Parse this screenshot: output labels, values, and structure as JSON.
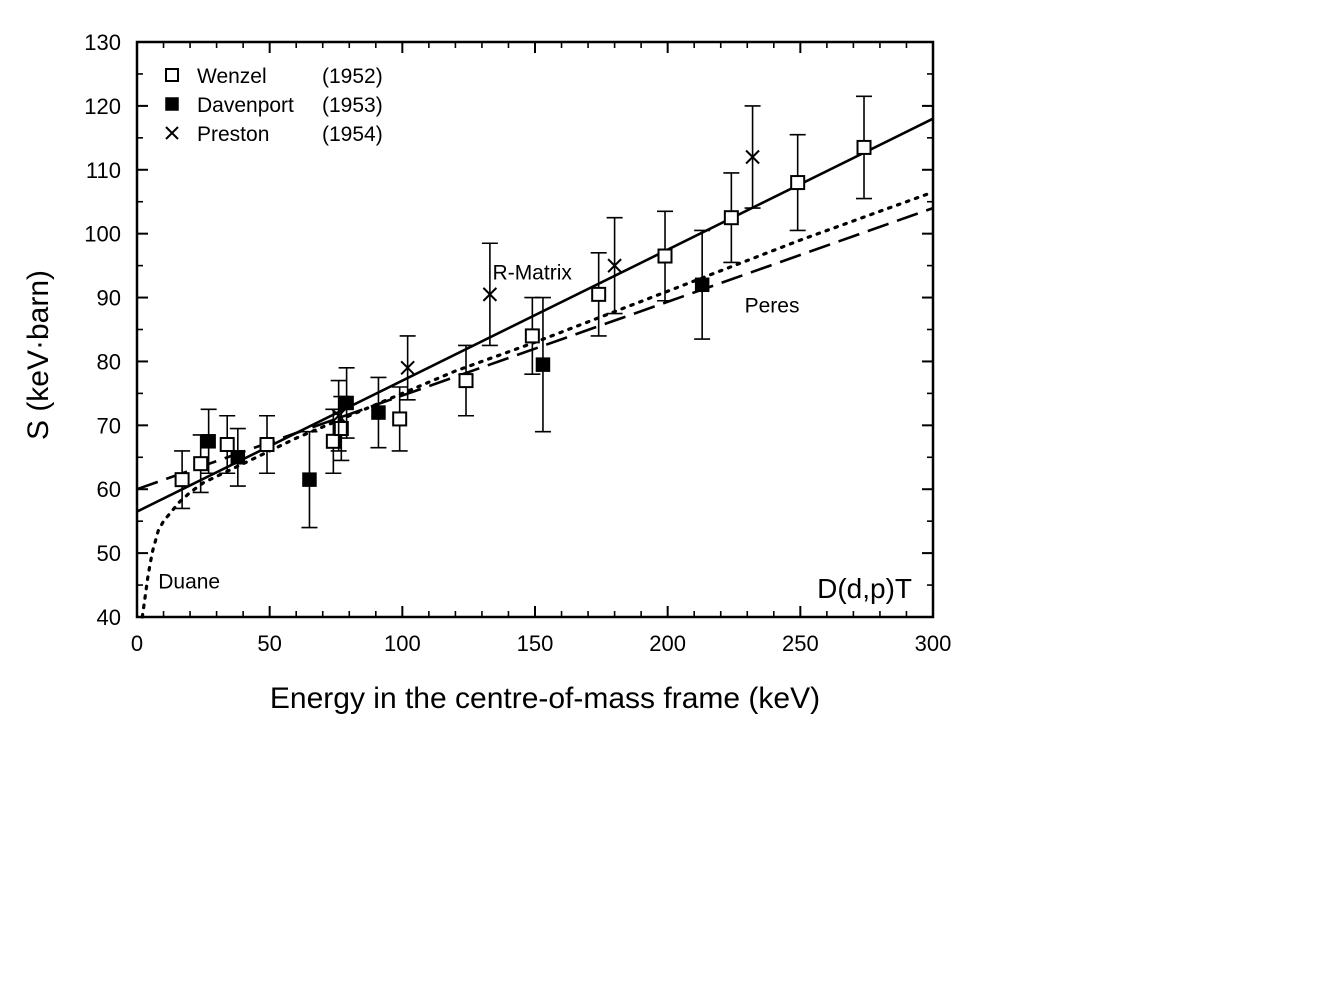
{
  "chart_data": {
    "type": "scatter",
    "title": "",
    "xlabel": "Energy in the centre-of-mass frame (keV)",
    "ylabel": "S  (keV·barn)",
    "xlim": [
      0,
      300
    ],
    "ylim": [
      40,
      130
    ],
    "x_ticks": [
      0,
      50,
      100,
      150,
      200,
      250,
      300
    ],
    "x_tick_labels": [
      "0",
      "50",
      "100",
      "150",
      "200",
      "250",
      "300"
    ],
    "y_ticks": [
      40,
      50,
      60,
      70,
      80,
      90,
      100,
      110,
      120,
      130
    ],
    "y_tick_labels": [
      "40",
      "50",
      "60",
      "70",
      "80",
      "90",
      "100",
      "110",
      "120",
      "130"
    ],
    "grid": false,
    "legend_position": "top-left",
    "series": [
      {
        "name": "Wenzel",
        "year": "(1952)",
        "marker": "open-square",
        "points": [
          {
            "x": 17,
            "y": 61.5,
            "err": 4.5
          },
          {
            "x": 24,
            "y": 64.0,
            "err": 4.5
          },
          {
            "x": 34,
            "y": 67.0,
            "err": 4.5
          },
          {
            "x": 49,
            "y": 67.0,
            "err": 4.5
          },
          {
            "x": 74,
            "y": 67.5,
            "err": 5.0
          },
          {
            "x": 77,
            "y": 69.5,
            "err": 5.0
          },
          {
            "x": 99,
            "y": 71.0,
            "err": 5.0
          },
          {
            "x": 124,
            "y": 77.0,
            "err": 5.5
          },
          {
            "x": 149,
            "y": 84.0,
            "err": 6.0
          },
          {
            "x": 174,
            "y": 90.5,
            "err": 6.5
          },
          {
            "x": 199,
            "y": 96.5,
            "err": 7.0
          },
          {
            "x": 224,
            "y": 102.5,
            "err": 7.0
          },
          {
            "x": 249,
            "y": 108.0,
            "err": 7.5
          },
          {
            "x": 274,
            "y": 113.5,
            "err": 8.0
          }
        ]
      },
      {
        "name": "Davenport",
        "year": "(1953)",
        "marker": "filled-square",
        "points": [
          {
            "x": 27,
            "y": 67.5,
            "err": 5.0
          },
          {
            "x": 38,
            "y": 65.0,
            "err": 4.5
          },
          {
            "x": 65,
            "y": 61.5,
            "err": 7.5
          },
          {
            "x": 79,
            "y": 73.5,
            "err": 5.5
          },
          {
            "x": 91,
            "y": 72.0,
            "err": 5.5
          },
          {
            "x": 153,
            "y": 79.5,
            "err": 10.5
          },
          {
            "x": 213,
            "y": 92.0,
            "err": 8.5
          }
        ]
      },
      {
        "name": "Preston",
        "year": "(1954)",
        "marker": "cross",
        "points": [
          {
            "x": 76,
            "y": 71.5,
            "err": 5.5
          },
          {
            "x": 102,
            "y": 79.0,
            "err": 5.0
          },
          {
            "x": 133,
            "y": 90.5,
            "err": 8.0
          },
          {
            "x": 180,
            "y": 95.0,
            "err": 7.5
          },
          {
            "x": 232,
            "y": 112.0,
            "err": 8.0
          }
        ]
      }
    ],
    "curves": [
      {
        "name": "R-Matrix",
        "style": "solid",
        "x": [
          0,
          300
        ],
        "y": [
          56.5,
          118.0
        ]
      },
      {
        "name": "Peres",
        "style": "dashed",
        "x": [
          0,
          300
        ],
        "y": [
          60.0,
          104.0
        ]
      },
      {
        "name": "Duane",
        "style": "dotted",
        "x": [
          2,
          3,
          4,
          5,
          6,
          7,
          8,
          10,
          12,
          14,
          16,
          20,
          25,
          30,
          40,
          50,
          60,
          80,
          100,
          120,
          150,
          200,
          250,
          300
        ],
        "y": [
          40.0,
          43.0,
          46.0,
          48.5,
          50.5,
          52.0,
          53.5,
          55.0,
          56.0,
          57.0,
          58.0,
          59.5,
          61.0,
          62.0,
          64.0,
          66.0,
          68.0,
          71.5,
          75.0,
          78.5,
          83.0,
          91.0,
          99.0,
          106.5
        ]
      }
    ],
    "annotations": [
      {
        "text": "R-Matrix",
        "x": 134,
        "y": 92.8
      },
      {
        "text": "Peres",
        "x": 229,
        "y": 87.7
      },
      {
        "text": "Duane",
        "x": 8,
        "y": 44.5
      }
    ],
    "reaction_label": "D(d,p)T"
  }
}
